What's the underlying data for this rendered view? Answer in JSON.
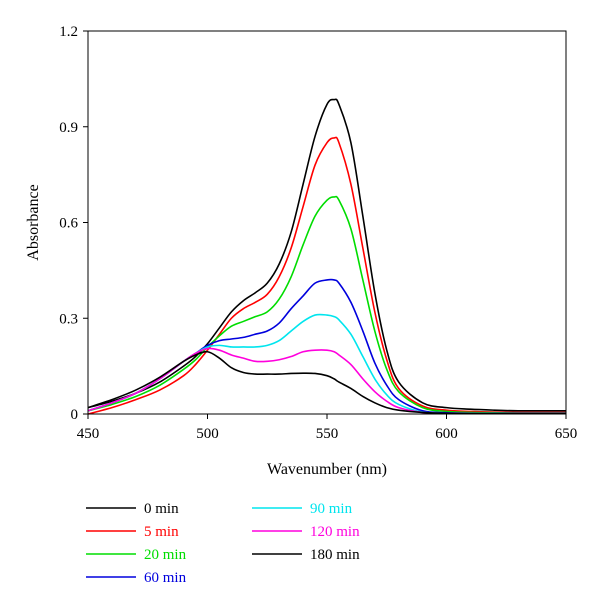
{
  "chart_data": {
    "type": "line",
    "title": "",
    "xlabel": "Wavenumber (nm)",
    "ylabel": "Absorbance",
    "xlim": [
      450,
      650
    ],
    "ylim": [
      0,
      1.2
    ],
    "xticks": [
      450,
      500,
      550,
      600,
      650
    ],
    "xtick_labels": [
      "450",
      "500",
      "550",
      "600",
      "650"
    ],
    "yticks": [
      0,
      0.3,
      0.6,
      0.9,
      1.2
    ],
    "ytick_labels": [
      "0",
      "0.3",
      "0.6",
      "0.9",
      "1.2"
    ],
    "grid": false,
    "legend_position": "bottom-left, outside plot, two columns",
    "series": [
      {
        "name": "0 min",
        "color": "#000000",
        "x": [
          450,
          460,
          470,
          480,
          490,
          495,
          500,
          505,
          510,
          515,
          520,
          525,
          530,
          535,
          540,
          545,
          550,
          553,
          555,
          560,
          565,
          570,
          575,
          580,
          590,
          600,
          610,
          620,
          630,
          640,
          650
        ],
        "y": [
          0.02,
          0.04,
          0.065,
          0.1,
          0.15,
          0.18,
          0.22,
          0.27,
          0.32,
          0.355,
          0.38,
          0.41,
          0.47,
          0.57,
          0.72,
          0.87,
          0.97,
          0.985,
          0.97,
          0.85,
          0.62,
          0.38,
          0.2,
          0.1,
          0.035,
          0.02,
          0.015,
          0.012,
          0.01,
          0.01,
          0.01
        ]
      },
      {
        "name": "5 min",
        "color": "#ff0000",
        "x": [
          450,
          460,
          470,
          480,
          490,
          495,
          500,
          505,
          510,
          515,
          520,
          525,
          530,
          535,
          540,
          545,
          550,
          553,
          555,
          560,
          565,
          570,
          575,
          580,
          590,
          600,
          610,
          620,
          630,
          640,
          650
        ],
        "y": [
          0.0,
          0.02,
          0.045,
          0.075,
          0.12,
          0.155,
          0.2,
          0.25,
          0.3,
          0.33,
          0.35,
          0.375,
          0.43,
          0.52,
          0.65,
          0.78,
          0.85,
          0.865,
          0.85,
          0.72,
          0.52,
          0.32,
          0.17,
          0.08,
          0.025,
          0.012,
          0.008,
          0.006,
          0.005,
          0.005,
          0.005
        ]
      },
      {
        "name": "20 min",
        "color": "#00dd00",
        "x": [
          450,
          460,
          470,
          480,
          490,
          495,
          500,
          505,
          510,
          515,
          520,
          525,
          530,
          535,
          540,
          545,
          550,
          553,
          555,
          560,
          565,
          570,
          575,
          580,
          590,
          600,
          610,
          620,
          630,
          640,
          650
        ],
        "y": [
          0.01,
          0.03,
          0.055,
          0.09,
          0.14,
          0.17,
          0.21,
          0.245,
          0.275,
          0.29,
          0.305,
          0.32,
          0.36,
          0.43,
          0.53,
          0.62,
          0.67,
          0.68,
          0.67,
          0.58,
          0.42,
          0.26,
          0.14,
          0.07,
          0.02,
          0.008,
          0.005,
          0.004,
          0.003,
          0.003,
          0.003
        ]
      },
      {
        "name": "60 min",
        "color": "#0000dd",
        "x": [
          450,
          460,
          470,
          480,
          490,
          495,
          500,
          505,
          510,
          515,
          520,
          525,
          530,
          535,
          540,
          545,
          550,
          553,
          555,
          560,
          565,
          570,
          575,
          580,
          590,
          600,
          610,
          620,
          630,
          640,
          650
        ],
        "y": [
          0.01,
          0.035,
          0.065,
          0.11,
          0.165,
          0.19,
          0.215,
          0.23,
          0.235,
          0.24,
          0.25,
          0.26,
          0.285,
          0.33,
          0.37,
          0.41,
          0.42,
          0.42,
          0.41,
          0.35,
          0.26,
          0.16,
          0.09,
          0.045,
          0.01,
          0.004,
          0.002,
          0.002,
          0.002,
          0.002,
          0.002
        ]
      },
      {
        "name": "90 min",
        "color": "#00e5ee",
        "x": [
          450,
          460,
          470,
          480,
          490,
          495,
          500,
          505,
          510,
          515,
          520,
          525,
          530,
          535,
          540,
          545,
          550,
          553,
          555,
          560,
          565,
          570,
          575,
          580,
          590,
          600,
          610,
          620,
          630,
          640,
          650
        ],
        "y": [
          0.01,
          0.035,
          0.065,
          0.11,
          0.165,
          0.19,
          0.21,
          0.215,
          0.21,
          0.21,
          0.21,
          0.215,
          0.23,
          0.26,
          0.29,
          0.31,
          0.31,
          0.305,
          0.295,
          0.25,
          0.18,
          0.11,
          0.06,
          0.03,
          0.006,
          0.002,
          0.001,
          0.001,
          0.001,
          0.001,
          0.001
        ]
      },
      {
        "name": "120 min",
        "color": "#ff00dd",
        "x": [
          450,
          460,
          470,
          480,
          490,
          495,
          500,
          505,
          510,
          515,
          520,
          525,
          530,
          535,
          540,
          545,
          550,
          553,
          555,
          560,
          565,
          570,
          575,
          580,
          590,
          600,
          610,
          620,
          630,
          640,
          650
        ],
        "y": [
          0.01,
          0.035,
          0.065,
          0.11,
          0.165,
          0.19,
          0.205,
          0.2,
          0.185,
          0.175,
          0.165,
          0.165,
          0.17,
          0.18,
          0.195,
          0.2,
          0.2,
          0.195,
          0.185,
          0.155,
          0.11,
          0.07,
          0.04,
          0.02,
          0.005,
          0.002,
          0.001,
          0.001,
          0.001,
          0.001,
          0.001
        ]
      },
      {
        "name": "180 min",
        "color": "#000000",
        "x": [
          450,
          460,
          470,
          480,
          490,
          495,
          500,
          505,
          510,
          515,
          520,
          525,
          530,
          535,
          540,
          545,
          550,
          553,
          555,
          560,
          565,
          570,
          575,
          580,
          590,
          600,
          610,
          620,
          630,
          640,
          650
        ],
        "y": [
          0.02,
          0.045,
          0.075,
          0.115,
          0.165,
          0.185,
          0.195,
          0.175,
          0.145,
          0.13,
          0.125,
          0.125,
          0.125,
          0.127,
          0.128,
          0.127,
          0.12,
          0.11,
          0.1,
          0.08,
          0.055,
          0.035,
          0.02,
          0.012,
          0.005,
          0.002,
          0.001,
          0.001,
          0.001,
          0.001,
          0.001
        ]
      }
    ]
  }
}
